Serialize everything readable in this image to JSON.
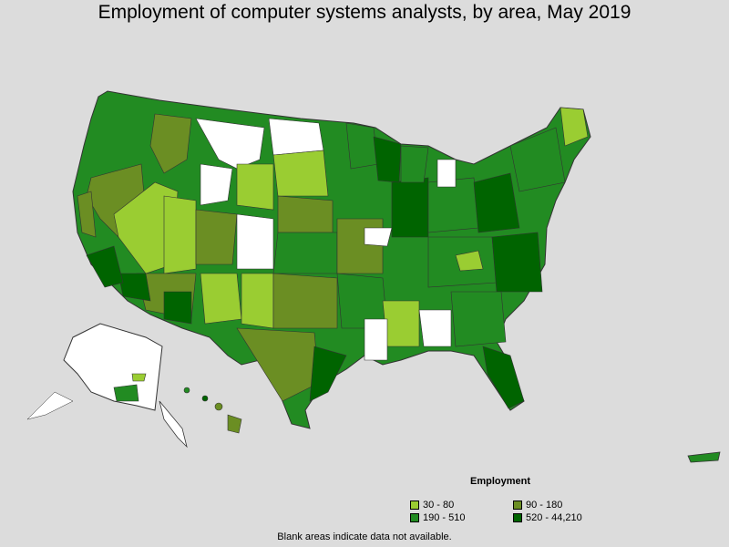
{
  "title": "Employment of computer systems analysts, by area, May 2019",
  "legend": {
    "title": "Employment",
    "items": [
      {
        "label": "30 - 80",
        "color": "#9acd32"
      },
      {
        "label": "90 - 180",
        "color": "#6b8e23"
      },
      {
        "label": "190 - 510",
        "color": "#228b22"
      },
      {
        "label": "520 - 44,210",
        "color": "#006400"
      }
    ]
  },
  "note": "Blank areas indicate data not available."
}
